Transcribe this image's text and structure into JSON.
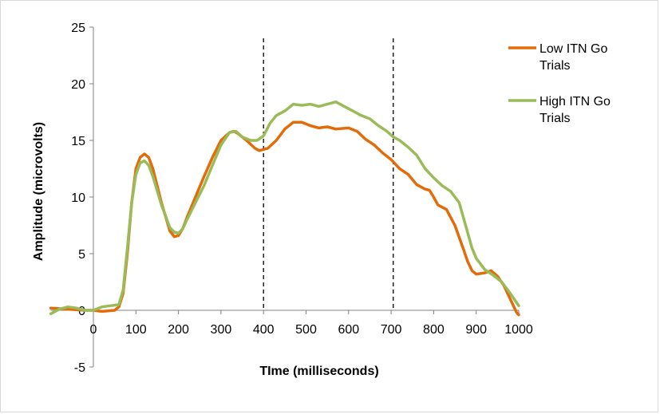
{
  "chart_data": {
    "type": "line",
    "title": "",
    "xlabel": "TIme (milliseconds)",
    "ylabel": "Amplitude (microvolts)",
    "xlim": [
      -100,
      1000
    ],
    "ylim": [
      -5,
      25
    ],
    "xticks": [
      0,
      100,
      200,
      300,
      400,
      500,
      600,
      700,
      800,
      900,
      1000
    ],
    "yticks": [
      -5,
      0,
      5,
      10,
      15,
      20,
      25
    ],
    "grid": false,
    "legend": "right",
    "vlines": [
      400,
      705
    ],
    "series": [
      {
        "name": "Low ITN Go Trials",
        "color": "#e36c0a",
        "points": [
          [
            -100,
            0.2
          ],
          [
            -60,
            0.1
          ],
          [
            -20,
            0.0
          ],
          [
            0,
            0.0
          ],
          [
            20,
            -0.1
          ],
          [
            50,
            0.0
          ],
          [
            60,
            0.3
          ],
          [
            70,
            1.5
          ],
          [
            80,
            5.0
          ],
          [
            90,
            9.5
          ],
          [
            100,
            12.5
          ],
          [
            110,
            13.5
          ],
          [
            120,
            13.8
          ],
          [
            130,
            13.5
          ],
          [
            140,
            12.5
          ],
          [
            160,
            9.5
          ],
          [
            180,
            7.0
          ],
          [
            190,
            6.5
          ],
          [
            200,
            6.6
          ],
          [
            210,
            7.2
          ],
          [
            220,
            8.2
          ],
          [
            240,
            10.0
          ],
          [
            260,
            11.8
          ],
          [
            280,
            13.5
          ],
          [
            300,
            15.0
          ],
          [
            320,
            15.7
          ],
          [
            330,
            15.8
          ],
          [
            340,
            15.6
          ],
          [
            360,
            15.0
          ],
          [
            380,
            14.3
          ],
          [
            390,
            14.1
          ],
          [
            410,
            14.3
          ],
          [
            430,
            15.0
          ],
          [
            450,
            16.0
          ],
          [
            470,
            16.6
          ],
          [
            490,
            16.6
          ],
          [
            510,
            16.3
          ],
          [
            530,
            16.1
          ],
          [
            550,
            16.2
          ],
          [
            570,
            16.0
          ],
          [
            600,
            16.1
          ],
          [
            620,
            15.8
          ],
          [
            640,
            15.1
          ],
          [
            660,
            14.6
          ],
          [
            680,
            13.9
          ],
          [
            700,
            13.3
          ],
          [
            720,
            12.5
          ],
          [
            740,
            12.0
          ],
          [
            760,
            11.1
          ],
          [
            780,
            10.7
          ],
          [
            790,
            10.6
          ],
          [
            800,
            10.0
          ],
          [
            810,
            9.3
          ],
          [
            830,
            8.9
          ],
          [
            850,
            7.5
          ],
          [
            870,
            5.4
          ],
          [
            880,
            4.3
          ],
          [
            890,
            3.5
          ],
          [
            900,
            3.2
          ],
          [
            920,
            3.3
          ],
          [
            935,
            3.5
          ],
          [
            950,
            3.0
          ],
          [
            965,
            2.2
          ],
          [
            980,
            1.0
          ],
          [
            995,
            -0.2
          ],
          [
            1000,
            -0.4
          ]
        ]
      },
      {
        "name": "High ITN Go Trials",
        "color": "#9bbb59",
        "points": [
          [
            -100,
            -0.3
          ],
          [
            -80,
            0.1
          ],
          [
            -60,
            0.3
          ],
          [
            -40,
            0.2
          ],
          [
            -20,
            0.0
          ],
          [
            0,
            0.0
          ],
          [
            20,
            0.3
          ],
          [
            40,
            0.4
          ],
          [
            60,
            0.5
          ],
          [
            70,
            1.8
          ],
          [
            80,
            5.5
          ],
          [
            90,
            9.5
          ],
          [
            100,
            12.0
          ],
          [
            110,
            13.0
          ],
          [
            120,
            13.2
          ],
          [
            130,
            12.8
          ],
          [
            140,
            11.8
          ],
          [
            160,
            9.3
          ],
          [
            180,
            7.3
          ],
          [
            190,
            6.9
          ],
          [
            200,
            6.8
          ],
          [
            210,
            7.2
          ],
          [
            220,
            8.0
          ],
          [
            240,
            9.5
          ],
          [
            260,
            11.0
          ],
          [
            280,
            12.8
          ],
          [
            300,
            14.6
          ],
          [
            320,
            15.7
          ],
          [
            335,
            15.8
          ],
          [
            350,
            15.3
          ],
          [
            370,
            15.0
          ],
          [
            385,
            15.0
          ],
          [
            400,
            15.4
          ],
          [
            415,
            16.5
          ],
          [
            430,
            17.2
          ],
          [
            450,
            17.6
          ],
          [
            470,
            18.2
          ],
          [
            490,
            18.1
          ],
          [
            510,
            18.2
          ],
          [
            530,
            18.0
          ],
          [
            550,
            18.2
          ],
          [
            570,
            18.4
          ],
          [
            590,
            18.0
          ],
          [
            610,
            17.6
          ],
          [
            630,
            17.2
          ],
          [
            650,
            16.9
          ],
          [
            670,
            16.3
          ],
          [
            690,
            15.8
          ],
          [
            705,
            15.3
          ],
          [
            720,
            15.0
          ],
          [
            740,
            14.4
          ],
          [
            760,
            13.7
          ],
          [
            780,
            12.5
          ],
          [
            800,
            11.7
          ],
          [
            820,
            11.0
          ],
          [
            840,
            10.5
          ],
          [
            860,
            9.5
          ],
          [
            875,
            7.5
          ],
          [
            890,
            5.5
          ],
          [
            900,
            4.6
          ],
          [
            920,
            3.6
          ],
          [
            940,
            3.1
          ],
          [
            960,
            2.5
          ],
          [
            980,
            1.5
          ],
          [
            1000,
            0.4
          ]
        ]
      }
    ]
  }
}
